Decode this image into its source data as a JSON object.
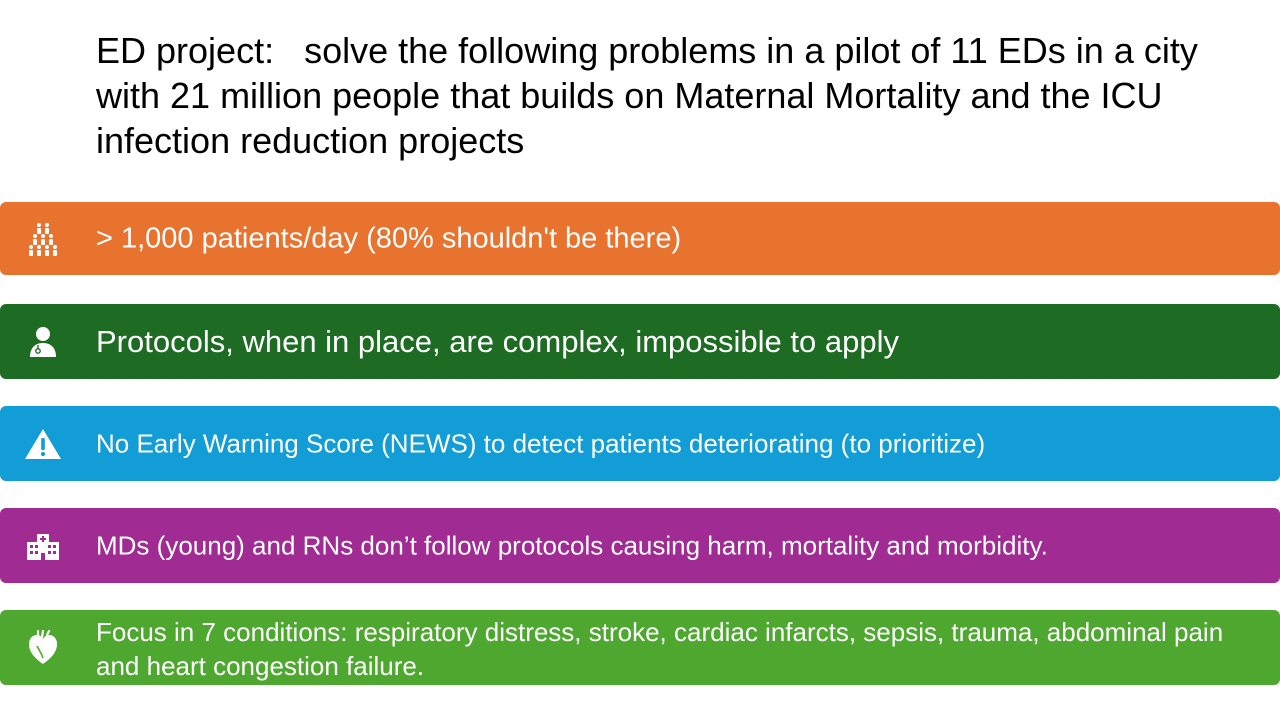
{
  "title": "ED project:   solve the following problems in a pilot of 11 EDs in a city with 21 million people that builds on Maternal Mortality and the ICU infection reduction projects",
  "colors": {
    "orange": "#E8732F",
    "dark_green": "#1E6B23",
    "blue": "#129DD6",
    "purple": "#A02B93",
    "light_green": "#4EA72E"
  },
  "bands": [
    {
      "icon": "crowd-icon",
      "text": "> 1,000 patients/day (80% shouldn't be there)"
    },
    {
      "icon": "doctor-icon",
      "text": "Protocols,  when in place, are complex,  impossible to apply"
    },
    {
      "icon": "warning-icon",
      "text": "No Early Warning Score (NEWS) to detect patients deteriorating (to prioritize)"
    },
    {
      "icon": "hospital-icon",
      "text": "MDs (young) and RNs don’t follow protocols causing harm, mortality and morbidity."
    },
    {
      "icon": "heart-icon",
      "text": "Focus in 7 conditions:  respiratory distress, stroke, cardiac infarcts, sepsis, trauma, abdominal pain and heart congestion failure."
    }
  ]
}
